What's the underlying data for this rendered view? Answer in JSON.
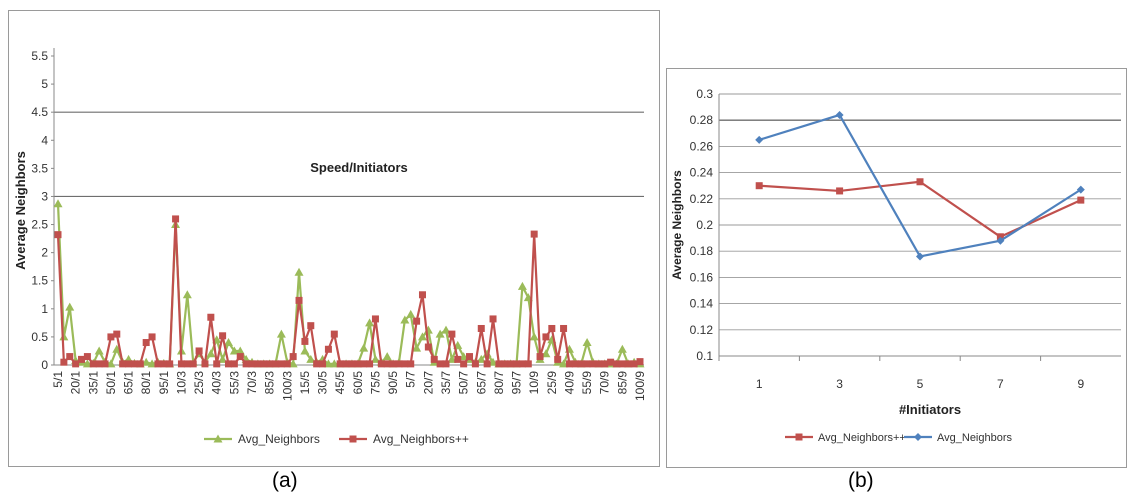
{
  "captions": [
    "(a)",
    "(b)"
  ],
  "chart_data": [
    {
      "type": "line",
      "title": "",
      "xlabel": "Speed/Initiators",
      "ylabel": "Average Neighbors",
      "ylim": [
        0,
        5.5
      ],
      "yticks": [
        "0",
        "0.5",
        "1",
        "1.5",
        "2",
        "2.5",
        "3",
        "3.5",
        "4",
        "4.5",
        "5",
        "5.5"
      ],
      "ytick_values": [
        0,
        0.5,
        1,
        1.5,
        2,
        2.5,
        3,
        3.5,
        4,
        4.5,
        5,
        5.5
      ],
      "gridlines": [
        3,
        4.5
      ],
      "x_count": 100,
      "tick_labels": [
        "5/1",
        "20/1",
        "35/1",
        "50/1",
        "65/1",
        "80/1",
        "95/1",
        "10/3",
        "25/3",
        "40/3",
        "55/3",
        "70/3",
        "85/3",
        "100/3",
        "15/5",
        "30/5",
        "45/5",
        "60/5",
        "75/5",
        "90/5",
        "5/7",
        "20/7",
        "35/7",
        "50/7",
        "65/7",
        "80/7",
        "95/7",
        "10/9",
        "25/9",
        "40/9",
        "55/9",
        "70/9",
        "85/9",
        "100/9"
      ],
      "legend_position": "bottom",
      "series": [
        {
          "name": "Avg_Neighbors",
          "color": "#9bbb59",
          "marker": "triangle",
          "values": [
            2.87,
            0.5,
            1.03,
            0.08,
            0.05,
            0.02,
            0.03,
            0.25,
            0.05,
            0.02,
            0.28,
            0.05,
            0.1,
            0.03,
            0.02,
            0.05,
            0.02,
            0.05,
            0.03,
            0.02,
            2.5,
            0.25,
            1.25,
            0.05,
            0.2,
            0.05,
            0.2,
            0.45,
            0.1,
            0.4,
            0.25,
            0.25,
            0.1,
            0.05,
            0.02,
            0.02,
            0.02,
            0.02,
            0.55,
            0.05,
            0.02,
            1.65,
            0.25,
            0.1,
            0.05,
            0.1,
            0.02,
            0.02,
            0.02,
            0.02,
            0.02,
            0.02,
            0.3,
            0.75,
            0.1,
            0.05,
            0.15,
            0.02,
            0.05,
            0.8,
            0.9,
            0.3,
            0.5,
            0.62,
            0.05,
            0.55,
            0.62,
            0.1,
            0.35,
            0.15,
            0.1,
            0.05,
            0.1,
            0.2,
            0.05,
            0.02,
            0.02,
            0.02,
            0.02,
            1.4,
            1.2,
            0.5,
            0.1,
            0.2,
            0.45,
            0.05,
            0.02,
            0.28,
            0.05,
            0.02,
            0.4,
            0.05,
            0.02,
            0.02,
            0.02,
            0.02,
            0.28,
            0.02,
            0.05,
            0.02
          ]
        },
        {
          "name": "Avg_Neighbors++",
          "color": "#c0504d",
          "marker": "square",
          "values": [
            2.32,
            0.05,
            0.15,
            0.02,
            0.1,
            0.15,
            0.02,
            0.02,
            0.02,
            0.5,
            0.55,
            0.02,
            0.02,
            0.02,
            0.02,
            0.4,
            0.5,
            0.02,
            0.02,
            0.02,
            2.6,
            0.02,
            0.02,
            0.02,
            0.25,
            0.02,
            0.85,
            0.02,
            0.52,
            0.02,
            0.02,
            0.15,
            0.02,
            0.02,
            0.02,
            0.02,
            0.02,
            0.02,
            0.02,
            0.02,
            0.15,
            1.15,
            0.42,
            0.7,
            0.02,
            0.02,
            0.28,
            0.55,
            0.02,
            0.02,
            0.02,
            0.02,
            0.02,
            0.02,
            0.82,
            0.02,
            0.02,
            0.02,
            0.02,
            0.02,
            0.02,
            0.78,
            1.25,
            0.32,
            0.1,
            0.02,
            0.02,
            0.55,
            0.1,
            0.02,
            0.15,
            0.02,
            0.65,
            0.02,
            0.82,
            0.02,
            0.02,
            0.02,
            0.02,
            0.02,
            0.02,
            2.33,
            0.15,
            0.5,
            0.65,
            0.1,
            0.65,
            0.02,
            0.02,
            0.02,
            0.02,
            0.02,
            0.02,
            0.02,
            0.05,
            0.02,
            0.02,
            0.02,
            0.02,
            0.06
          ]
        }
      ]
    },
    {
      "type": "line",
      "title": "",
      "xlabel": "#Initiators",
      "ylabel": "Average Neighbors",
      "ylim": [
        0.1,
        0.3
      ],
      "yticks": [
        "0.1",
        "0.12",
        "0.14",
        "0.16",
        "0.18",
        "0.2",
        "0.22",
        "0.24",
        "0.26",
        "0.28",
        "0.3"
      ],
      "ytick_values": [
        0.1,
        0.12,
        0.14,
        0.16,
        0.18,
        0.2,
        0.22,
        0.24,
        0.26,
        0.28,
        0.3
      ],
      "categories": [
        "1",
        "3",
        "5",
        "7",
        "9"
      ],
      "legend_position": "bottom",
      "series": [
        {
          "name": "Avg_Neighbors++",
          "color": "#c0504d",
          "marker": "square",
          "values": [
            0.23,
            0.226,
            0.233,
            0.191,
            0.219
          ]
        },
        {
          "name": "Avg_Neighbors",
          "color": "#4f81bd",
          "marker": "diamond",
          "values": [
            0.265,
            0.284,
            0.176,
            0.188,
            0.227
          ]
        }
      ]
    }
  ]
}
